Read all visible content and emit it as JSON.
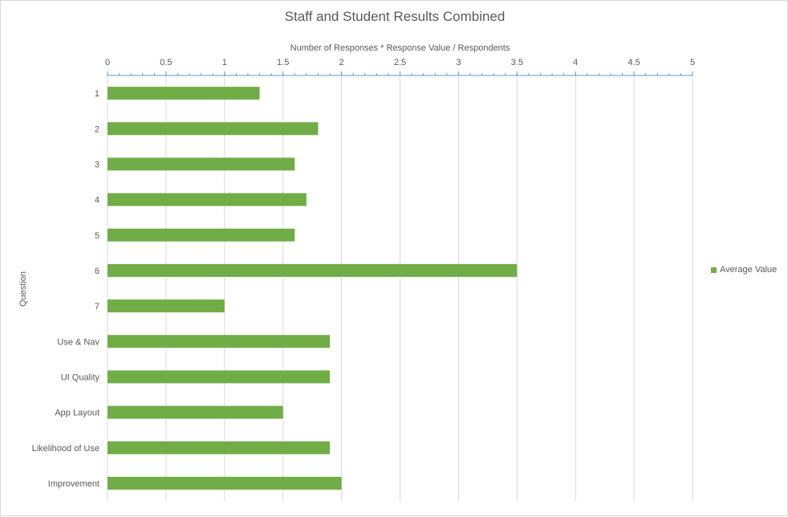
{
  "chart_data": {
    "type": "bar",
    "orientation": "horizontal",
    "title": "Staff and Student Results Combined",
    "xlabel": "Number of Responses * Response Value / Respondents",
    "ylabel": "Question",
    "xlim": [
      0,
      5
    ],
    "x_ticks": [
      "0",
      "0.5",
      "1",
      "1.5",
      "2",
      "2.5",
      "3",
      "3.5",
      "4",
      "4.5",
      "5"
    ],
    "x_axis_position": "top",
    "grid": true,
    "legend_position": "right",
    "categories": [
      "1",
      "2",
      "3",
      "4",
      "5",
      "6",
      "7",
      "Use & Nav",
      "UI Quality",
      "App Layout",
      "Likelihood of Use",
      "Improvement"
    ],
    "series": [
      {
        "name": "Average Value",
        "color": "#70ad47",
        "values": [
          1.3,
          1.8,
          1.6,
          1.7,
          1.6,
          3.5,
          1.0,
          1.9,
          1.9,
          1.5,
          1.9,
          2.0
        ]
      }
    ]
  }
}
